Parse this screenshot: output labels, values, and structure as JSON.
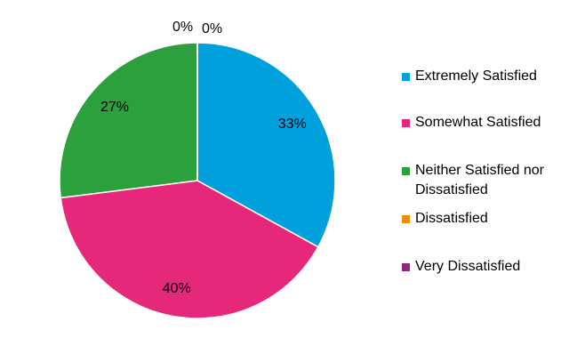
{
  "chart_data": {
    "type": "pie",
    "categories": [
      "Extremely Satisfied",
      "Somewhat Satisfied",
      "Neither Satisfied nor Dissatisfied",
      "Dissatisfied",
      "Very Dissatisfied"
    ],
    "values": [
      33,
      40,
      27,
      0,
      0
    ],
    "value_labels": [
      "33%",
      "40%",
      "27%",
      "0%",
      "0%"
    ],
    "colors": [
      "#00a0dc",
      "#e6287a",
      "#2ca03c",
      "#f08c00",
      "#8c2a7c"
    ],
    "legend": "right"
  }
}
